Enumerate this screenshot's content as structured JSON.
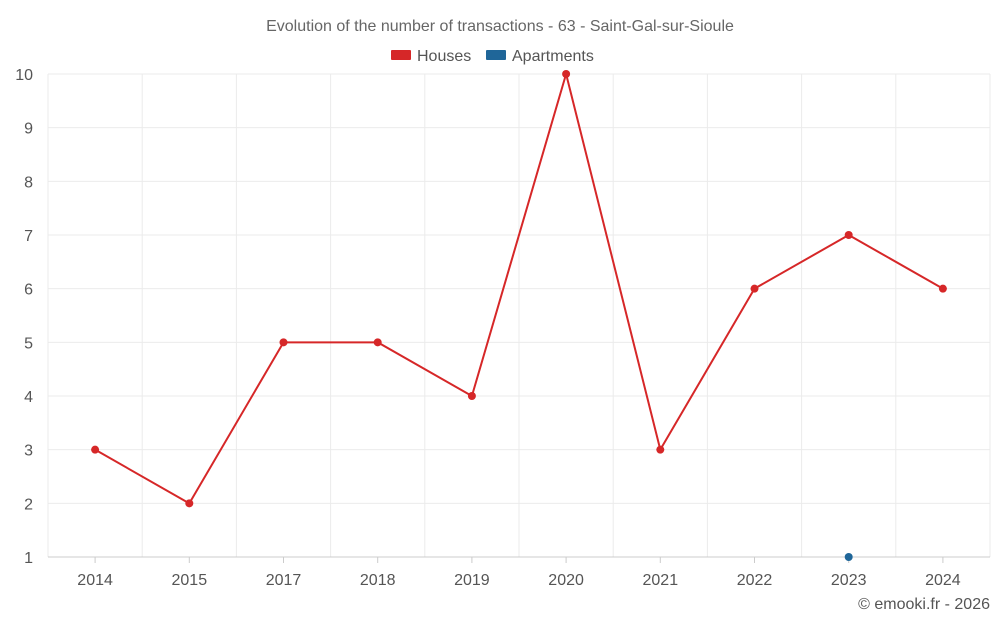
{
  "chart_data": {
    "type": "line",
    "title": "Evolution of the number of transactions - 63 - Saint-Gal-sur-Sioule",
    "categories": [
      "2014",
      "2015",
      "2017",
      "2018",
      "2019",
      "2020",
      "2021",
      "2022",
      "2023",
      "2024"
    ],
    "series": [
      {
        "name": "Houses",
        "color": "#d62728",
        "values": [
          3,
          2,
          5,
          5,
          4,
          10,
          3,
          6,
          7,
          6
        ]
      },
      {
        "name": "Apartments",
        "color": "#1f6699",
        "values": [
          null,
          null,
          null,
          null,
          null,
          null,
          null,
          null,
          1,
          null
        ]
      }
    ],
    "ylim": [
      1,
      10
    ],
    "yticks": [
      "1",
      "2",
      "3",
      "4",
      "5",
      "6",
      "7",
      "8",
      "9",
      "10"
    ],
    "xlabel": "",
    "ylabel": "",
    "grid": true,
    "legend": "top-center"
  },
  "credit": "© emooki.fr - 2026"
}
